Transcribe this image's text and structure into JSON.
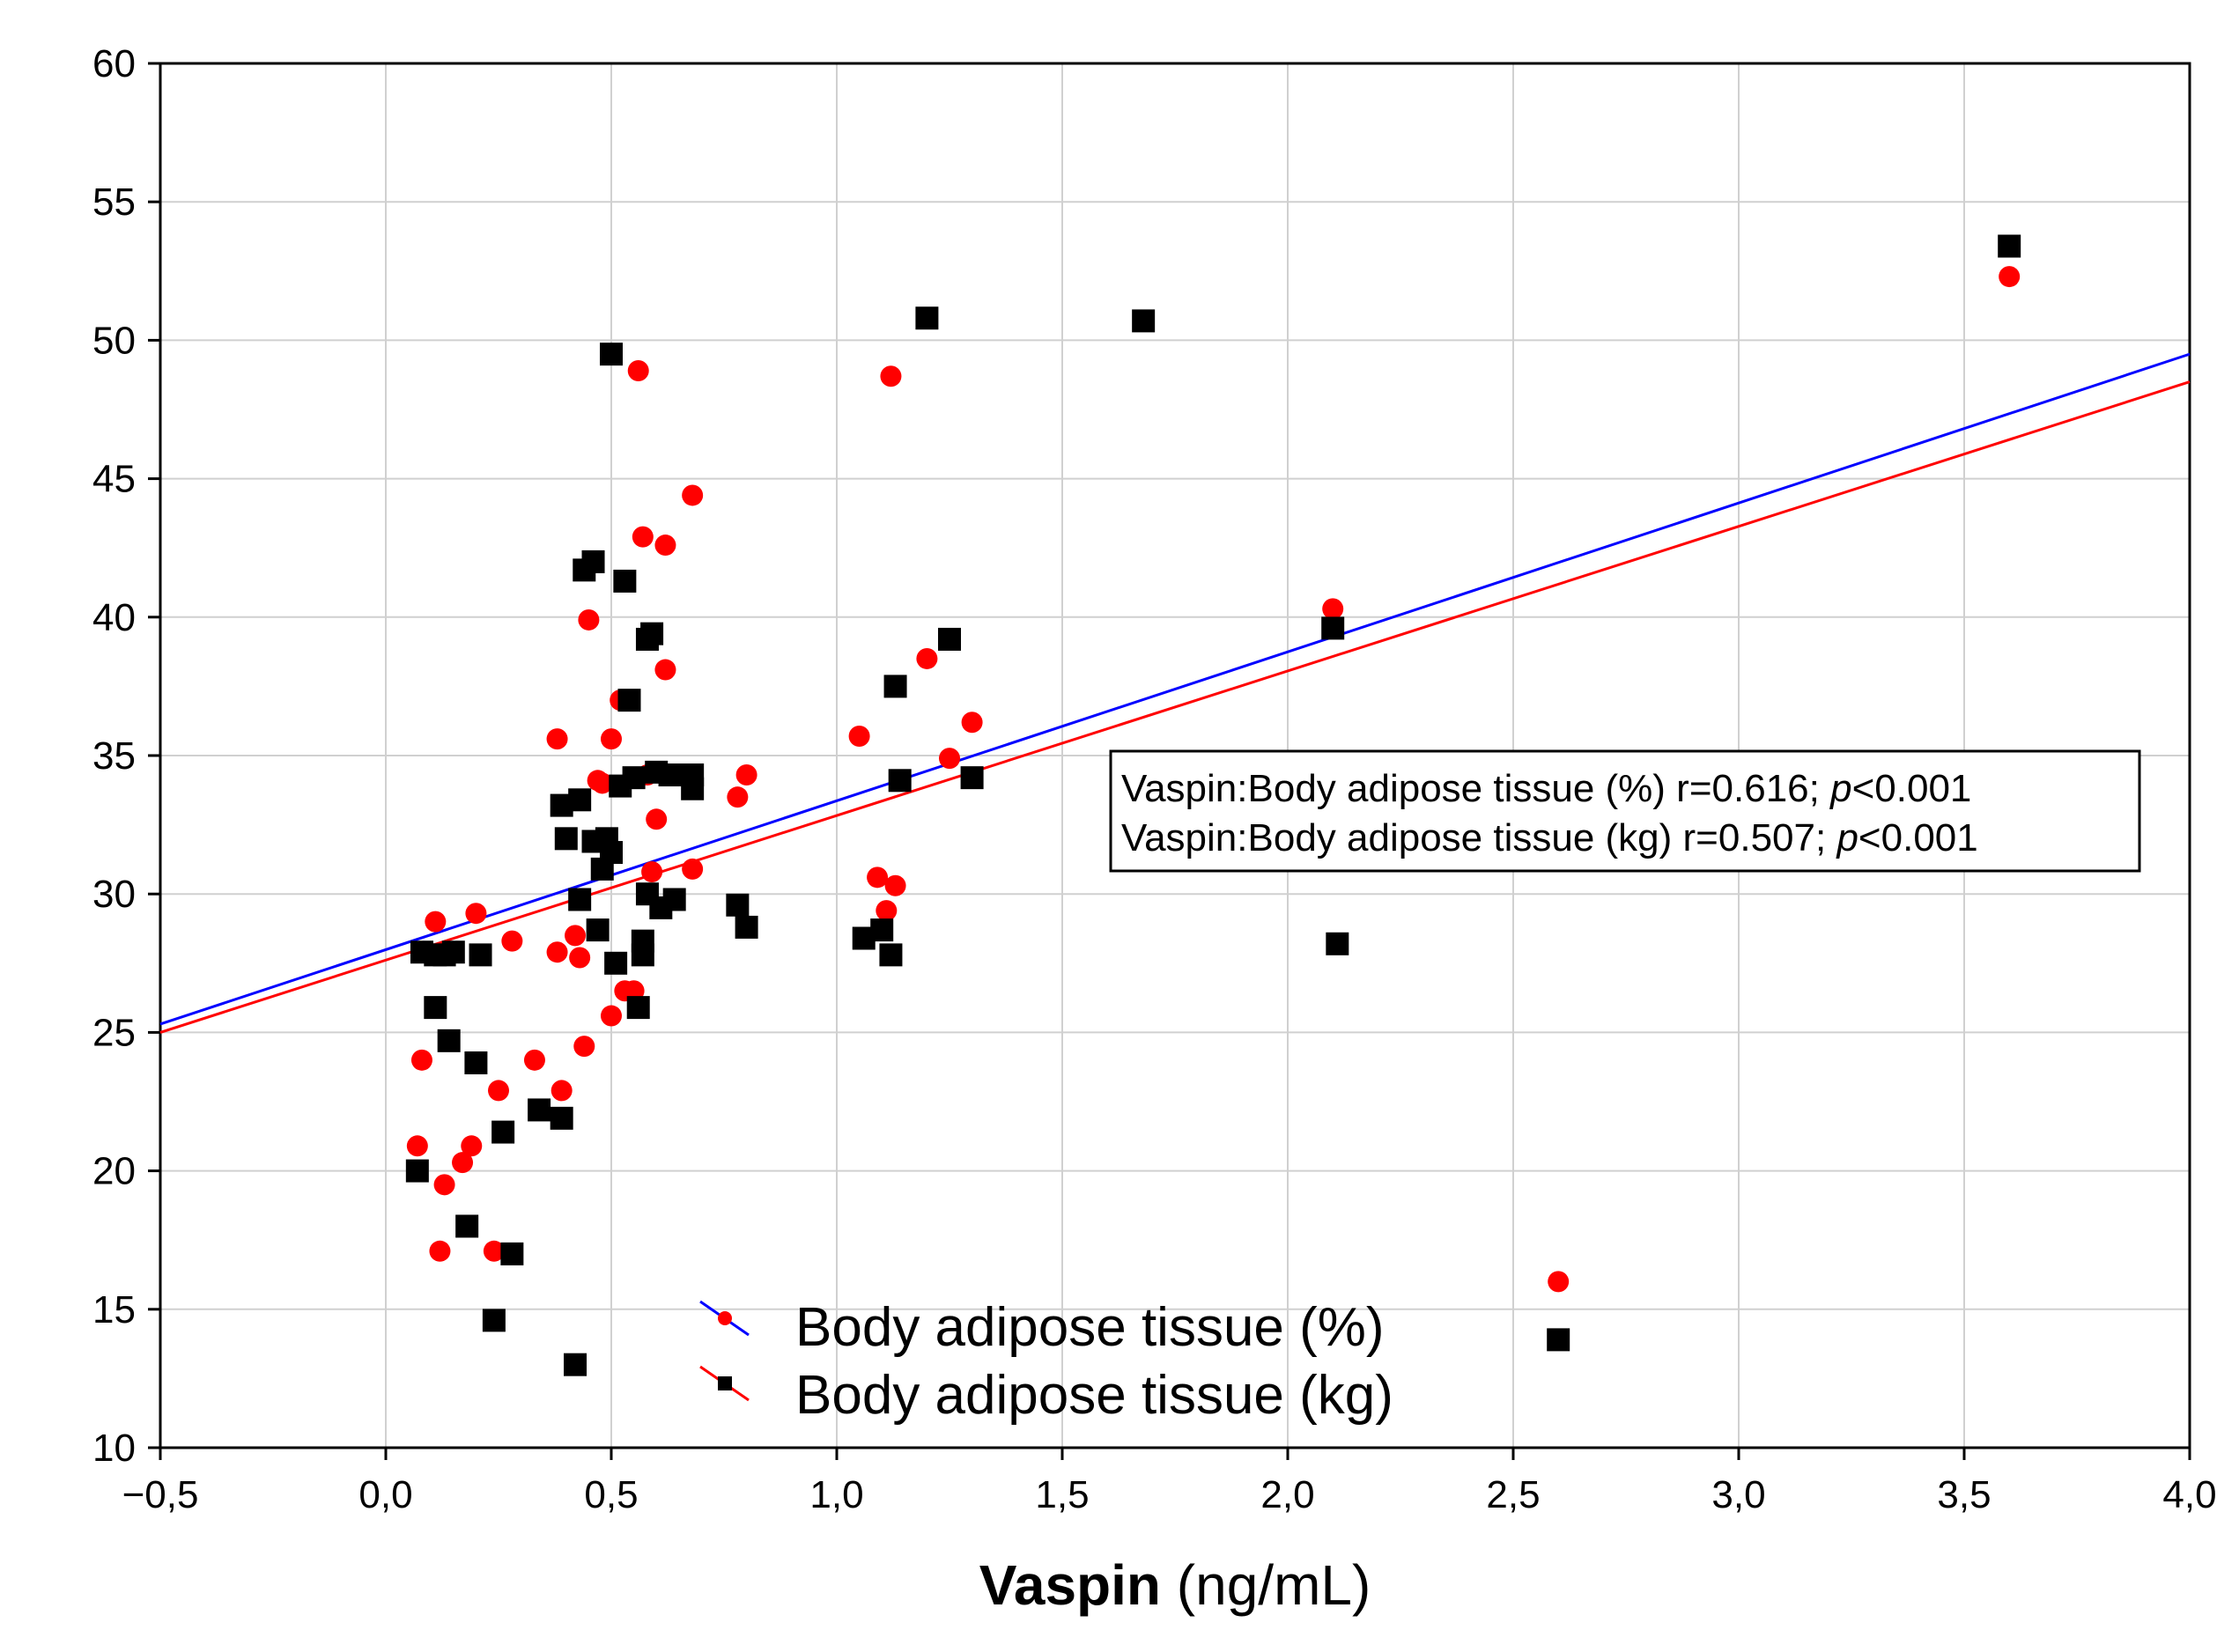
{
  "chart_data": {
    "type": "scatter",
    "title": "",
    "xlabel_bold": "Vaspin",
    "xlabel_units": " (ng/mL)",
    "ylabel": "",
    "xlim": [
      -0.5,
      4.0
    ],
    "ylim": [
      10,
      60
    ],
    "grid": true,
    "x_ticks": [
      -0.5,
      0.0,
      0.5,
      1.0,
      1.5,
      2.0,
      2.5,
      3.0,
      3.5,
      4.0
    ],
    "x_tick_labels": [
      "−0,5",
      "0,0",
      "0,5",
      "1,0",
      "1,5",
      "2,0",
      "2,5",
      "3,0",
      "3,5",
      "4,0"
    ],
    "y_ticks": [
      10,
      15,
      20,
      25,
      30,
      35,
      40,
      45,
      50,
      55,
      60
    ],
    "y_tick_labels": [
      "10",
      "15",
      "20",
      "25",
      "30",
      "35",
      "40",
      "45",
      "50",
      "55",
      "60"
    ],
    "annotation": {
      "lines": [
        {
          "prefix": "Vaspin:Body adipose tissue (%) r=0.616; ",
          "p": "p",
          "suffix": "<0.001"
        },
        {
          "prefix": "Vaspin:Body adipose tissue (kg) r=0.507; ",
          "p": "p",
          "suffix": "<0.001"
        }
      ]
    },
    "legend": {
      "position": "bottom-center",
      "items": [
        {
          "label": "Body adipose tissue (%)",
          "marker": "circle",
          "marker_color": "#ff0000",
          "line_color": "#0000ff"
        },
        {
          "label": "Body adipose tissue (kg)",
          "marker": "square",
          "marker_color": "#000000",
          "line_color": "#ff0000"
        }
      ]
    },
    "series": [
      {
        "name": "Body adipose tissue (%)",
        "marker": "circle",
        "color": "#ff0000",
        "fit_color": "#0000ff",
        "fit": {
          "x0": -0.5,
          "y0": 25.3,
          "x1": 4.0,
          "y1": 49.5
        },
        "points": [
          [
            0.07,
            20.9
          ],
          [
            0.08,
            24.0
          ],
          [
            0.11,
            29.0
          ],
          [
            0.12,
            17.1
          ],
          [
            0.13,
            19.5
          ],
          [
            0.17,
            20.3
          ],
          [
            0.19,
            20.9
          ],
          [
            0.2,
            29.3
          ],
          [
            0.24,
            17.1
          ],
          [
            0.25,
            22.9
          ],
          [
            0.28,
            28.3
          ],
          [
            0.33,
            24.0
          ],
          [
            0.38,
            27.9
          ],
          [
            0.38,
            35.6
          ],
          [
            0.39,
            22.9
          ],
          [
            0.42,
            28.5
          ],
          [
            0.43,
            27.7
          ],
          [
            0.44,
            24.5
          ],
          [
            0.45,
            39.9
          ],
          [
            0.47,
            34.1
          ],
          [
            0.48,
            34.0
          ],
          [
            0.5,
            25.6
          ],
          [
            0.5,
            35.6
          ],
          [
            0.52,
            37.0
          ],
          [
            0.53,
            26.5
          ],
          [
            0.55,
            26.5
          ],
          [
            0.56,
            48.9
          ],
          [
            0.57,
            42.9
          ],
          [
            0.58,
            34.3
          ],
          [
            0.59,
            30.8
          ],
          [
            0.6,
            32.7
          ],
          [
            0.62,
            38.1
          ],
          [
            0.62,
            42.6
          ],
          [
            0.65,
            34.3
          ],
          [
            0.68,
            30.9
          ],
          [
            0.68,
            44.4
          ],
          [
            0.78,
            33.5
          ],
          [
            0.8,
            34.3
          ],
          [
            1.05,
            35.7
          ],
          [
            1.09,
            30.6
          ],
          [
            1.11,
            29.4
          ],
          [
            1.12,
            48.7
          ],
          [
            1.13,
            30.3
          ],
          [
            1.2,
            38.5
          ],
          [
            1.25,
            34.9
          ],
          [
            1.3,
            36.2
          ],
          [
            2.1,
            40.3
          ],
          [
            2.6,
            16.0
          ],
          [
            3.6,
            52.3
          ]
        ]
      },
      {
        "name": "Body adipose tissue (kg)",
        "marker": "square",
        "color": "#000000",
        "fit_color": "#ff0000",
        "fit": {
          "x0": -0.5,
          "y0": 25.0,
          "x1": 4.0,
          "y1": 48.5
        },
        "points": [
          [
            0.07,
            20.0
          ],
          [
            0.08,
            27.9
          ],
          [
            0.11,
            27.8
          ],
          [
            0.11,
            25.9
          ],
          [
            0.13,
            27.8
          ],
          [
            0.14,
            24.7
          ],
          [
            0.15,
            27.9
          ],
          [
            0.18,
            18.0
          ],
          [
            0.2,
            23.9
          ],
          [
            0.21,
            27.8
          ],
          [
            0.24,
            14.6
          ],
          [
            0.26,
            21.4
          ],
          [
            0.28,
            17.0
          ],
          [
            0.34,
            22.2
          ],
          [
            0.39,
            33.2
          ],
          [
            0.39,
            21.9
          ],
          [
            0.4,
            32.0
          ],
          [
            0.42,
            13.0
          ],
          [
            0.43,
            33.4
          ],
          [
            0.43,
            29.8
          ],
          [
            0.44,
            41.7
          ],
          [
            0.46,
            42.0
          ],
          [
            0.46,
            31.9
          ],
          [
            0.47,
            28.7
          ],
          [
            0.48,
            30.9
          ],
          [
            0.49,
            32.0
          ],
          [
            0.5,
            49.5
          ],
          [
            0.5,
            31.5
          ],
          [
            0.51,
            27.5
          ],
          [
            0.52,
            33.9
          ],
          [
            0.53,
            41.3
          ],
          [
            0.54,
            37.0
          ],
          [
            0.55,
            34.2
          ],
          [
            0.56,
            25.9
          ],
          [
            0.57,
            27.8
          ],
          [
            0.57,
            28.3
          ],
          [
            0.58,
            39.2
          ],
          [
            0.58,
            30.0
          ],
          [
            0.59,
            39.4
          ],
          [
            0.6,
            34.4
          ],
          [
            0.61,
            29.5
          ],
          [
            0.63,
            34.3
          ],
          [
            0.64,
            29.8
          ],
          [
            0.68,
            34.3
          ],
          [
            0.68,
            33.8
          ],
          [
            0.78,
            29.6
          ],
          [
            0.8,
            28.8
          ],
          [
            1.06,
            28.4
          ],
          [
            1.1,
            28.7
          ],
          [
            1.12,
            27.8
          ],
          [
            1.13,
            37.5
          ],
          [
            1.14,
            34.1
          ],
          [
            1.2,
            50.8
          ],
          [
            1.25,
            39.2
          ],
          [
            1.3,
            34.2
          ],
          [
            1.68,
            50.7
          ],
          [
            2.1,
            39.6
          ],
          [
            2.11,
            28.2
          ],
          [
            2.6,
            13.9
          ],
          [
            3.6,
            53.4
          ]
        ]
      }
    ]
  }
}
